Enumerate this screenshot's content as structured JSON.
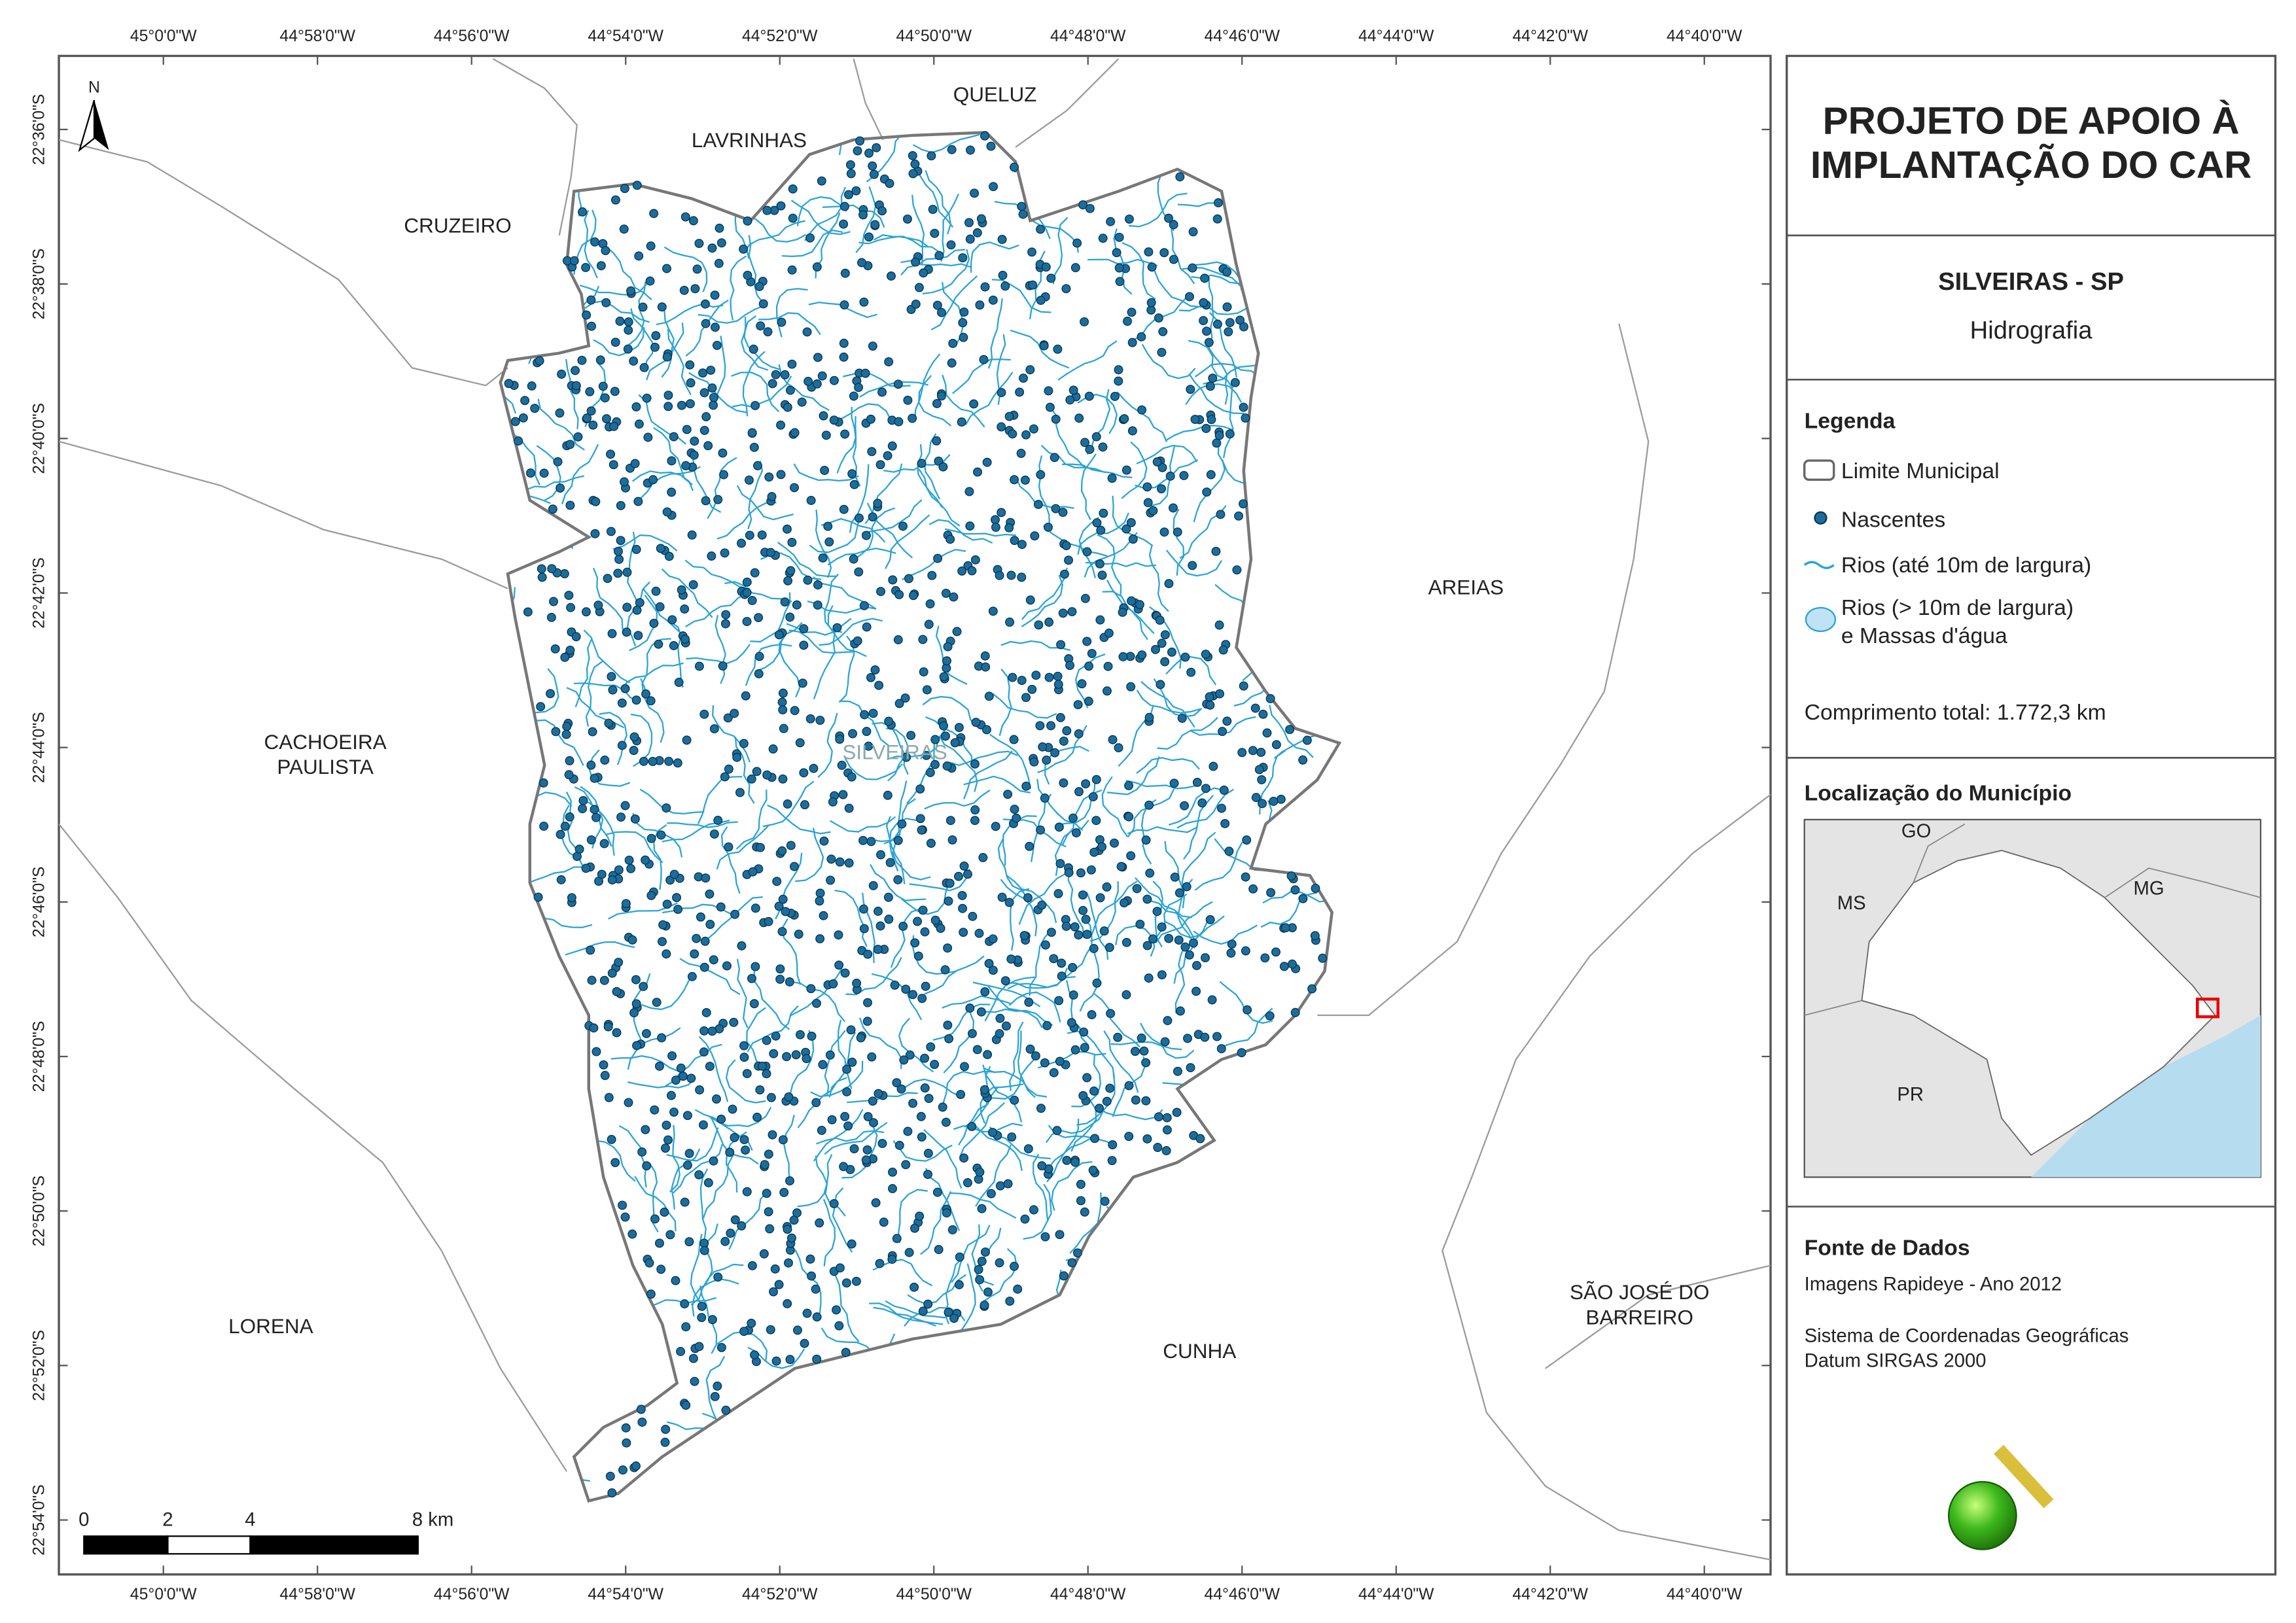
{
  "map": {
    "north": "N",
    "grid_labels": {
      "top": [
        "45°0'0\"W",
        "44°58'0\"W",
        "44°56'0\"W",
        "44°54'0\"W",
        "44°52'0\"W",
        "44°50'0\"W",
        "44°48'0\"W",
        "44°46'0\"W",
        "44°44'0\"W",
        "44°42'0\"W",
        "44°40'0\"W"
      ],
      "bottom": [
        "45°0'0\"W",
        "44°58'0\"W",
        "44°56'0\"W",
        "44°54'0\"W",
        "44°52'0\"W",
        "44°50'0\"W",
        "44°48'0\"W",
        "44°46'0\"W",
        "44°44'0\"W",
        "44°42'0\"W",
        "44°40'0\"W"
      ],
      "left": [
        "22°36'0\"S",
        "22°38'0\"S",
        "22°40'0\"S",
        "22°42'0\"S",
        "22°44'0\"S",
        "22°46'0\"S",
        "22°48'0\"S",
        "22°50'0\"S",
        "22°52'0\"S",
        "22°54'0\"S"
      ]
    },
    "places": [
      {
        "lines": [
          "QUELUZ"
        ]
      },
      {
        "lines": [
          "LAVRINHAS"
        ]
      },
      {
        "lines": [
          "CRUZEIRO"
        ]
      },
      {
        "lines": [
          "AREIAS"
        ]
      },
      {
        "lines": [
          "CACHOEIRA",
          "PAULISTA"
        ]
      },
      {
        "lines": [
          "SILVEIRAS"
        ]
      },
      {
        "lines": [
          "LORENA"
        ]
      },
      {
        "lines": [
          "CUNHA"
        ]
      },
      {
        "lines": [
          "SÃO JOSÉ DO",
          "BARREIRO"
        ]
      }
    ],
    "scale_bar": [
      "0",
      "2",
      "4",
      "8 km"
    ]
  },
  "panel": {
    "title": [
      "PROJETO DE APOIO À",
      "IMPLANTAÇÃO DO CAR"
    ],
    "municipality": "SILVEIRAS - SP",
    "theme": "Hidrografia",
    "legend": {
      "title": "Legenda",
      "items": [
        {
          "lines": [
            "Limite Municipal"
          ]
        },
        {
          "lines": [
            "Nascentes"
          ]
        },
        {
          "lines": [
            "Rios (até 10m de largura)"
          ]
        },
        {
          "lines": [
            "Rios (> 10m de largura)",
            "e Massas d'água"
          ]
        }
      ]
    },
    "total_length": "Comprimento total: 1.772,3 km",
    "location": {
      "title": "Localização do Município",
      "labels": [
        "GO",
        "MS",
        "MG",
        "PR"
      ]
    },
    "sources": {
      "title": "Fonte de Dados",
      "lines": [
        "Imagens Rapideye - Ano 2012",
        "Sistema de Coordenadas Geográficas",
        "Datum SIRGAS 2000"
      ]
    },
    "logo": "fbds"
  }
}
